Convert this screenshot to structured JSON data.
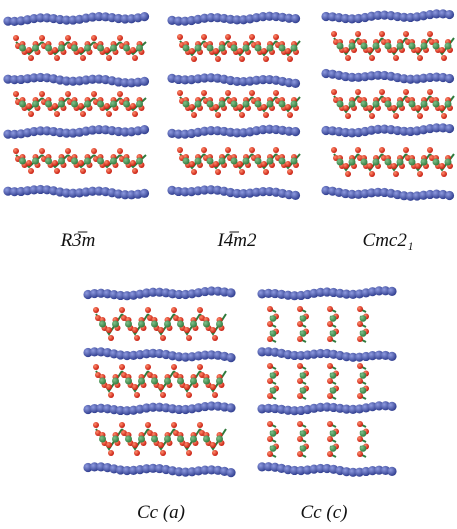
{
  "figure": {
    "panels": [
      {
        "label": "R3̅m"
      },
      {
        "label": "I4̅m2"
      },
      {
        "label": "Cmc2₁"
      },
      {
        "label": "Cc (a)"
      },
      {
        "label": "Cc (c)"
      }
    ]
  }
}
